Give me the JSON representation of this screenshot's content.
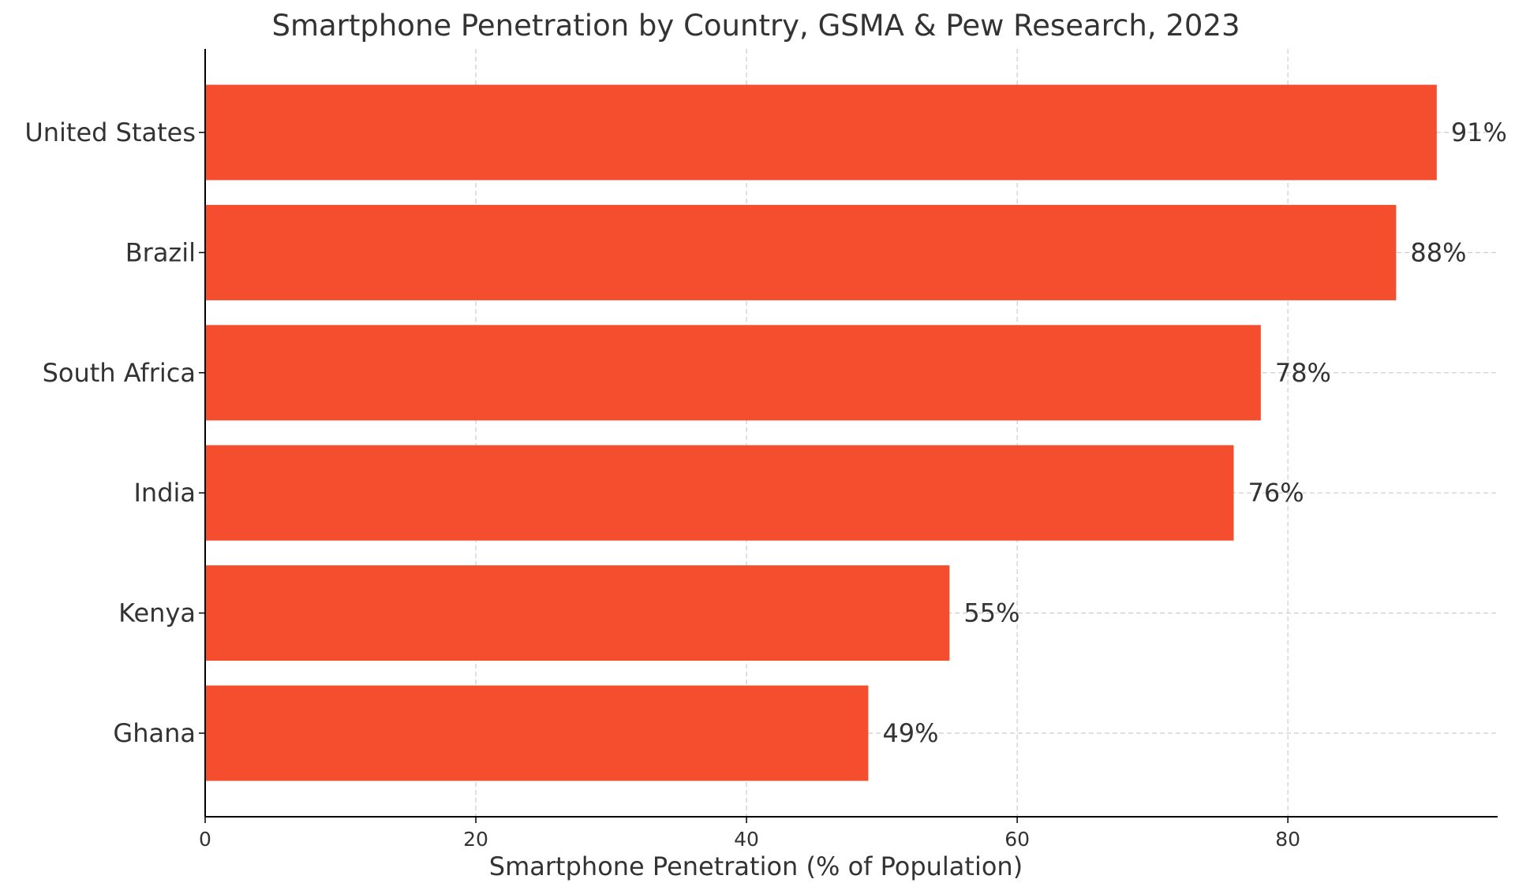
{
  "chart_data": {
    "type": "bar",
    "orientation": "horizontal",
    "title": "Smartphone Penetration by Country, GSMA & Pew Research, 2023",
    "xlabel": "Smartphone Penetration (% of Population)",
    "ylabel": "",
    "categories": [
      "United States",
      "Brazil",
      "South Africa",
      "India",
      "Kenya",
      "Ghana"
    ],
    "values": [
      91,
      88,
      78,
      76,
      55,
      49
    ],
    "value_labels": [
      "91%",
      "88%",
      "78%",
      "76%",
      "55%",
      "49%"
    ],
    "x_ticks": [
      0,
      20,
      40,
      60,
      80
    ],
    "x_tick_labels": [
      "0",
      "20",
      "40",
      "60",
      "80"
    ],
    "xlim": [
      0,
      95.5
    ],
    "grid": true,
    "grid_style": "dashed",
    "bar_color": "#F44E2E",
    "text_color": "#333333",
    "grid_color": "#CCCCCC",
    "axis_color": "#000000"
  }
}
